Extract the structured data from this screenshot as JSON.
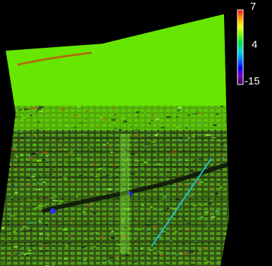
{
  "colorbar": {
    "max_label": "7",
    "mid_label": "4",
    "min_label": "-15",
    "colors": [
      "#ff0000",
      "#ff9900",
      "#ffff00",
      "#66ff00",
      "#00e04a",
      "#00d8d8",
      "#0080ff",
      "#0000ff",
      "#7a00c8",
      "#300050"
    ]
  },
  "map": {
    "background_color": "#000000",
    "base_color": "#66e600",
    "urban_texture_color": "#1e2d12"
  }
}
